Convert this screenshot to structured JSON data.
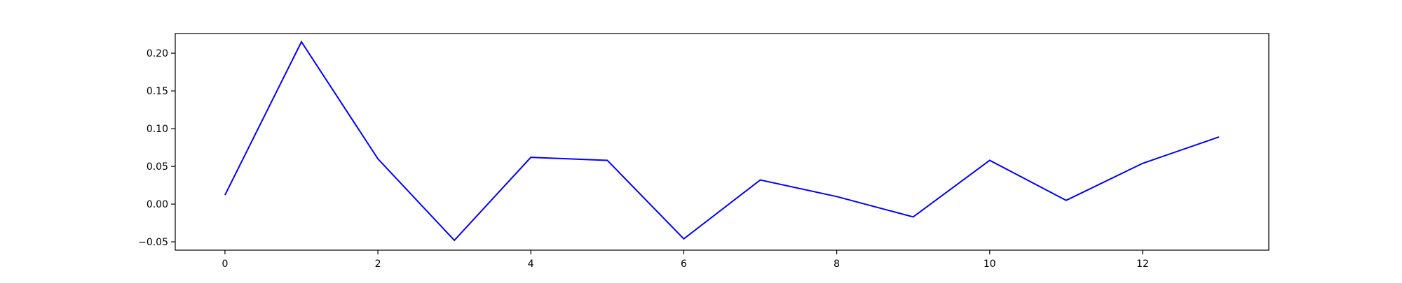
{
  "colors": {
    "background": "#ffffff",
    "axes": "#000000",
    "series": "#0000ff"
  },
  "chart_data": {
    "type": "line",
    "title": "",
    "xlabel": "",
    "ylabel": "",
    "grid": false,
    "xlim": [
      -0.65,
      13.65
    ],
    "ylim": [
      -0.061,
      0.226
    ],
    "x_ticks": [
      0,
      2,
      4,
      6,
      8,
      10,
      12
    ],
    "x_tick_labels": [
      "0",
      "2",
      "4",
      "6",
      "8",
      "10",
      "12"
    ],
    "y_ticks": [
      -0.05,
      0.0,
      0.05,
      0.1,
      0.15,
      0.2
    ],
    "y_tick_labels": [
      "−0.05",
      "0.00",
      "0.05",
      "0.10",
      "0.15",
      "0.20"
    ],
    "x": [
      0,
      1,
      2,
      3,
      4,
      5,
      6,
      7,
      8,
      9,
      10,
      11,
      12,
      13
    ],
    "series": [
      {
        "color": "#0000ff",
        "values": [
          0.012,
          0.215,
          0.06,
          -0.048,
          0.062,
          0.058,
          -0.046,
          0.032,
          0.01,
          -0.017,
          0.058,
          0.005,
          0.054,
          0.089
        ]
      }
    ]
  }
}
